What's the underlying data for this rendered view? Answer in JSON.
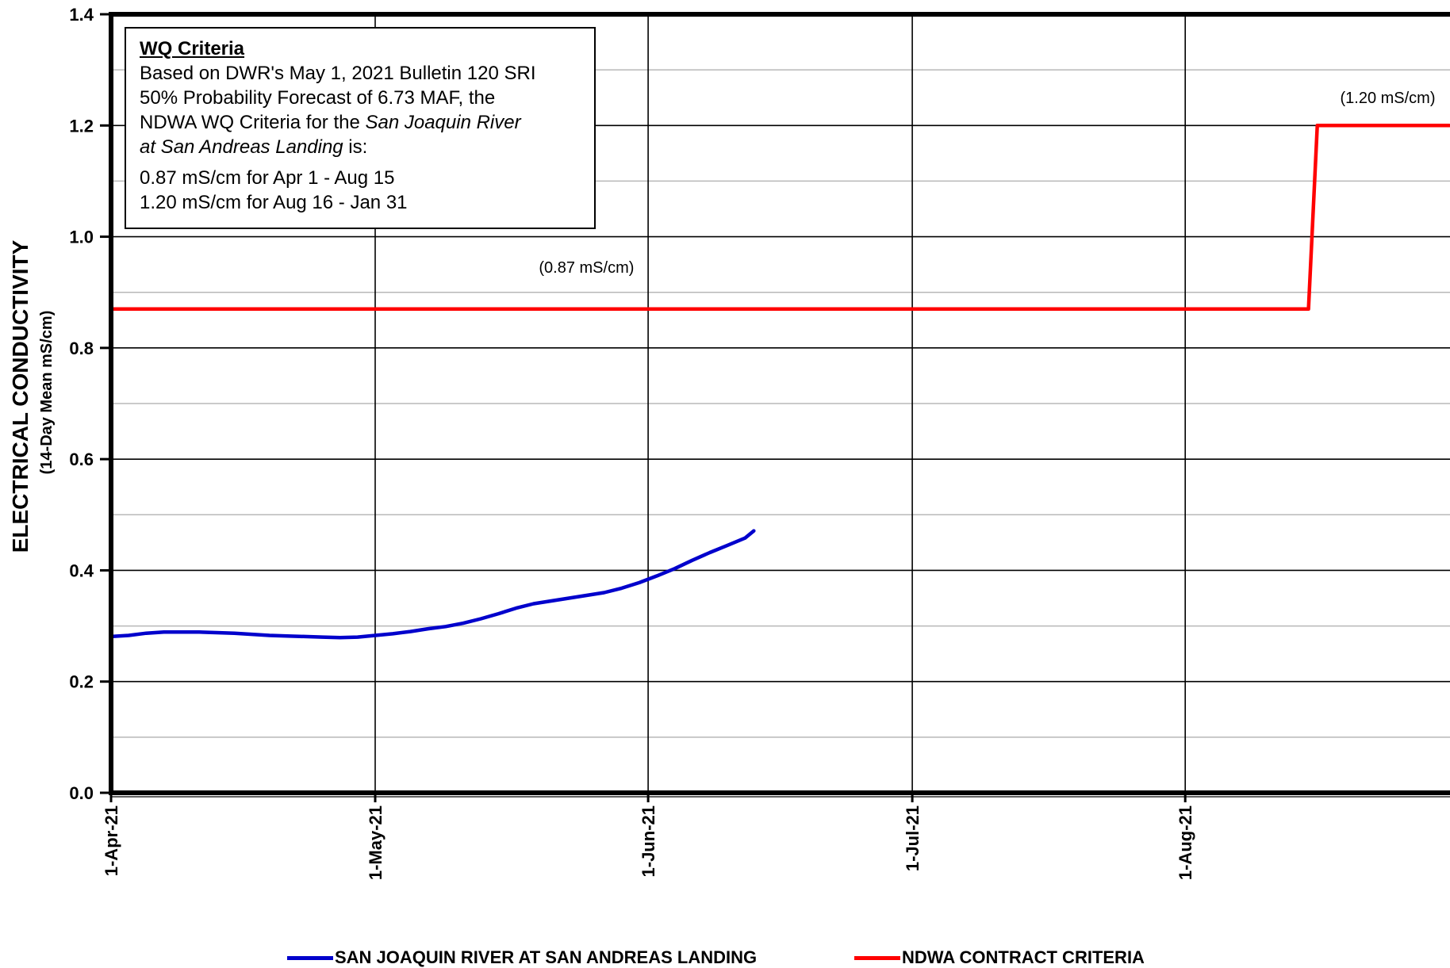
{
  "chart_data": {
    "type": "line",
    "ylabel": "ELECTRICAL CONDUCTIVITY",
    "ylabel_sub": "(14-Day Mean mS/cm)",
    "xlabel": "",
    "ylim": [
      0.0,
      1.4
    ],
    "yticks": [
      0.0,
      0.2,
      0.4,
      0.6,
      0.8,
      1.0,
      1.2,
      1.4
    ],
    "ytick_labels": [
      "0.0",
      "0.2",
      "0.4",
      "0.6",
      "0.8",
      "1.0",
      "1.2",
      "1.4"
    ],
    "yminor_ticks": [
      0.1,
      0.3,
      0.5,
      0.7,
      0.9,
      1.1,
      1.3
    ],
    "xlim": [
      "2021-04-01",
      "2021-08-31"
    ],
    "xticks": [
      "2021-04-01",
      "2021-05-01",
      "2021-06-01",
      "2021-07-01",
      "2021-08-01"
    ],
    "xtick_labels": [
      "1-Apr-21",
      "1-May-21",
      "1-Jun-21",
      "1-Jul-21",
      "1-Aug-21"
    ],
    "grid": true,
    "legend_position": "bottom",
    "series": [
      {
        "name": "SAN JOAQUIN RIVER AT SAN ANDREAS LANDING",
        "color": "#0000cc",
        "x": [
          "2021-04-01",
          "2021-04-03",
          "2021-04-05",
          "2021-04-07",
          "2021-04-09",
          "2021-04-11",
          "2021-04-13",
          "2021-04-15",
          "2021-04-17",
          "2021-04-19",
          "2021-04-21",
          "2021-04-23",
          "2021-04-25",
          "2021-04-27",
          "2021-04-29",
          "2021-05-01",
          "2021-05-03",
          "2021-05-05",
          "2021-05-07",
          "2021-05-09",
          "2021-05-11",
          "2021-05-13",
          "2021-05-15",
          "2021-05-17",
          "2021-05-19",
          "2021-05-21",
          "2021-05-23",
          "2021-05-25",
          "2021-05-27",
          "2021-05-29",
          "2021-05-31",
          "2021-06-02",
          "2021-06-04",
          "2021-06-06",
          "2021-06-08",
          "2021-06-10",
          "2021-06-12",
          "2021-06-13"
        ],
        "y": [
          0.281,
          0.283,
          0.287,
          0.289,
          0.289,
          0.289,
          0.288,
          0.287,
          0.285,
          0.283,
          0.282,
          0.281,
          0.28,
          0.279,
          0.28,
          0.283,
          0.286,
          0.29,
          0.295,
          0.299,
          0.305,
          0.313,
          0.322,
          0.332,
          0.34,
          0.345,
          0.35,
          0.355,
          0.36,
          0.368,
          0.378,
          0.39,
          0.403,
          0.418,
          0.432,
          0.445,
          0.458,
          0.471
        ]
      },
      {
        "name": "NDWA CONTRACT CRITERIA",
        "color": "#ff0000",
        "x": [
          "2021-04-01",
          "2021-08-15",
          "2021-08-16",
          "2021-08-31"
        ],
        "y": [
          0.87,
          0.87,
          1.2,
          1.2
        ]
      }
    ],
    "annotations": [
      {
        "text": "(0.87 mS/cm)",
        "x": "2021-05-25",
        "y": 0.935
      },
      {
        "text": "(1.20 mS/cm)",
        "x": "2021-08-24",
        "y": 1.24
      }
    ]
  },
  "criteria_box": {
    "title": "WQ Criteria",
    "line1": "Based on DWR's May 1, 2021 Bulletin 120 SRI",
    "line2": "50% Probability Forecast of 6.73 MAF, the",
    "line3_prefix": "NDWA WQ Criteria for the ",
    "line3_italic": "San Joaquin River",
    "line4_italic": "at San Andreas Landing",
    "line4_suffix": " is:",
    "line5": "0.87 mS/cm for Apr 1 - Aug 15",
    "line6": "1.20 mS/cm for Aug 16 - Jan 31"
  },
  "legend": {
    "items": [
      {
        "label": "SAN JOAQUIN RIVER AT SAN ANDREAS LANDING",
        "color": "#0000cc"
      },
      {
        "label": "NDWA CONTRACT CRITERIA",
        "color": "#ff0000"
      }
    ]
  }
}
